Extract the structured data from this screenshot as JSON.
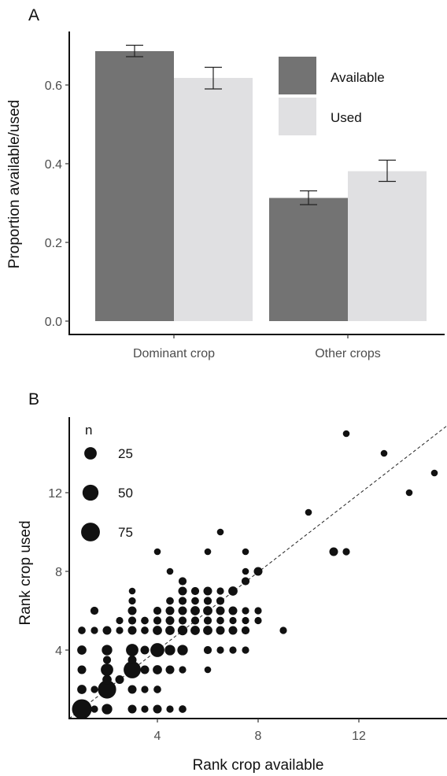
{
  "chart_data": [
    {
      "panel": "A",
      "type": "bar",
      "ylabel": "Proportion available/used",
      "xlabel": "",
      "categories": [
        "Dominant crop",
        "Other crops"
      ],
      "ylim": [
        0,
        0.72
      ],
      "yticks": [
        "0.0",
        "0.2",
        "0.4",
        "0.6"
      ],
      "yticks_values": [
        0,
        0.2,
        0.4,
        0.6
      ],
      "legend_position": "top-right",
      "series": [
        {
          "name": "Available",
          "color": "#737373",
          "values": [
            0.686,
            0.313
          ],
          "error_low": [
            0.672,
            0.296
          ],
          "error_high": [
            0.701,
            0.331
          ]
        },
        {
          "name": "Used",
          "color": "#e0e0e2",
          "values": [
            0.618,
            0.381
          ],
          "error_low": [
            0.59,
            0.355
          ],
          "error_high": [
            0.645,
            0.409
          ]
        }
      ]
    },
    {
      "panel": "B",
      "type": "scatter",
      "xlabel": "Rank crop available",
      "ylabel": "Rank crop used",
      "xlim": [
        0.2,
        15.3
      ],
      "ylim": [
        0.2,
        15.75
      ],
      "xticks": [
        "4",
        "8",
        "12"
      ],
      "xticks_values": [
        4,
        8,
        12
      ],
      "yticks": [
        "4",
        "8",
        "12"
      ],
      "yticks_values": [
        4,
        8,
        12
      ],
      "reference_line": "y = x (dashed)",
      "size_legend": {
        "title": "n",
        "levels": [
          {
            "label": "25",
            "value": 25
          },
          {
            "label": "50",
            "value": 50
          },
          {
            "label": "75",
            "value": 75
          }
        ]
      },
      "points": [
        {
          "x": 1,
          "y": 1,
          "n": 85
        },
        {
          "x": 1.5,
          "y": 1,
          "n": 4
        },
        {
          "x": 2,
          "y": 1,
          "n": 15
        },
        {
          "x": 3,
          "y": 1,
          "n": 8
        },
        {
          "x": 3.5,
          "y": 1,
          "n": 4
        },
        {
          "x": 4,
          "y": 1,
          "n": 8
        },
        {
          "x": 4.5,
          "y": 1,
          "n": 4
        },
        {
          "x": 5,
          "y": 1,
          "n": 5
        },
        {
          "x": 1,
          "y": 2,
          "n": 10
        },
        {
          "x": 1.5,
          "y": 2,
          "n": 4
        },
        {
          "x": 2,
          "y": 2,
          "n": 70
        },
        {
          "x": 3,
          "y": 2,
          "n": 8
        },
        {
          "x": 3.5,
          "y": 2,
          "n": 4
        },
        {
          "x": 4,
          "y": 2,
          "n": 5
        },
        {
          "x": 2,
          "y": 2.5,
          "n": 10
        },
        {
          "x": 2.5,
          "y": 2.5,
          "n": 8
        },
        {
          "x": 1,
          "y": 3,
          "n": 8
        },
        {
          "x": 2,
          "y": 3,
          "n": 25
        },
        {
          "x": 3,
          "y": 3,
          "n": 60
        },
        {
          "x": 3.5,
          "y": 3,
          "n": 8
        },
        {
          "x": 4,
          "y": 3,
          "n": 10
        },
        {
          "x": 4.5,
          "y": 3,
          "n": 8
        },
        {
          "x": 5,
          "y": 3,
          "n": 4
        },
        {
          "x": 6,
          "y": 3,
          "n": 3
        },
        {
          "x": 2,
          "y": 3.5,
          "n": 6
        },
        {
          "x": 3,
          "y": 3.5,
          "n": 8
        },
        {
          "x": 1,
          "y": 4,
          "n": 10
        },
        {
          "x": 2,
          "y": 4,
          "n": 15
        },
        {
          "x": 3,
          "y": 4,
          "n": 25
        },
        {
          "x": 3.5,
          "y": 4,
          "n": 8
        },
        {
          "x": 4,
          "y": 4,
          "n": 35
        },
        {
          "x": 4.5,
          "y": 4,
          "n": 15
        },
        {
          "x": 5,
          "y": 4,
          "n": 15
        },
        {
          "x": 6,
          "y": 4,
          "n": 6
        },
        {
          "x": 6.5,
          "y": 4,
          "n": 4
        },
        {
          "x": 7,
          "y": 4,
          "n": 4
        },
        {
          "x": 7.5,
          "y": 4,
          "n": 4
        },
        {
          "x": 1,
          "y": 5,
          "n": 5
        },
        {
          "x": 1.5,
          "y": 5,
          "n": 4
        },
        {
          "x": 2,
          "y": 5,
          "n": 8
        },
        {
          "x": 2.5,
          "y": 5,
          "n": 4
        },
        {
          "x": 3,
          "y": 5,
          "n": 8
        },
        {
          "x": 3.5,
          "y": 5,
          "n": 5
        },
        {
          "x": 4,
          "y": 5,
          "n": 10
        },
        {
          "x": 4.5,
          "y": 5,
          "n": 10
        },
        {
          "x": 5,
          "y": 5,
          "n": 12
        },
        {
          "x": 5.5,
          "y": 5,
          "n": 10
        },
        {
          "x": 6,
          "y": 5,
          "n": 10
        },
        {
          "x": 6.5,
          "y": 5,
          "n": 8
        },
        {
          "x": 7,
          "y": 5,
          "n": 8
        },
        {
          "x": 7.5,
          "y": 5,
          "n": 6
        },
        {
          "x": 9,
          "y": 5,
          "n": 4
        },
        {
          "x": 2.5,
          "y": 5.5,
          "n": 4
        },
        {
          "x": 3,
          "y": 5.5,
          "n": 6
        },
        {
          "x": 3.5,
          "y": 5.5,
          "n": 5
        },
        {
          "x": 4,
          "y": 5.5,
          "n": 6
        },
        {
          "x": 4.5,
          "y": 5.5,
          "n": 8
        },
        {
          "x": 5,
          "y": 5.5,
          "n": 6
        },
        {
          "x": 5.5,
          "y": 5.5,
          "n": 6
        },
        {
          "x": 6,
          "y": 5.5,
          "n": 6
        },
        {
          "x": 6.5,
          "y": 5.5,
          "n": 5
        },
        {
          "x": 7,
          "y": 5.5,
          "n": 4
        },
        {
          "x": 7.5,
          "y": 5.5,
          "n": 4
        },
        {
          "x": 8,
          "y": 5.5,
          "n": 4
        },
        {
          "x": 1.5,
          "y": 6,
          "n": 6
        },
        {
          "x": 3,
          "y": 6,
          "n": 8
        },
        {
          "x": 4,
          "y": 6,
          "n": 6
        },
        {
          "x": 4.5,
          "y": 6,
          "n": 8
        },
        {
          "x": 5,
          "y": 6,
          "n": 8
        },
        {
          "x": 5.5,
          "y": 6,
          "n": 10
        },
        {
          "x": 6,
          "y": 6,
          "n": 10
        },
        {
          "x": 6.5,
          "y": 6,
          "n": 8
        },
        {
          "x": 7,
          "y": 6,
          "n": 8
        },
        {
          "x": 7.5,
          "y": 6,
          "n": 4
        },
        {
          "x": 8,
          "y": 6,
          "n": 4
        },
        {
          "x": 3,
          "y": 6.5,
          "n": 4
        },
        {
          "x": 4.5,
          "y": 6.5,
          "n": 5
        },
        {
          "x": 5,
          "y": 6.5,
          "n": 6
        },
        {
          "x": 5.5,
          "y": 6.5,
          "n": 5
        },
        {
          "x": 6,
          "y": 6.5,
          "n": 6
        },
        {
          "x": 6.5,
          "y": 6.5,
          "n": 6
        },
        {
          "x": 3,
          "y": 7,
          "n": 3
        },
        {
          "x": 5,
          "y": 7,
          "n": 8
        },
        {
          "x": 5.5,
          "y": 7,
          "n": 6
        },
        {
          "x": 6,
          "y": 7,
          "n": 8
        },
        {
          "x": 6.5,
          "y": 7,
          "n": 4
        },
        {
          "x": 7,
          "y": 7,
          "n": 10
        },
        {
          "x": 5,
          "y": 7.5,
          "n": 6
        },
        {
          "x": 7.5,
          "y": 7.5,
          "n": 6
        },
        {
          "x": 4.5,
          "y": 8,
          "n": 3
        },
        {
          "x": 7.5,
          "y": 8,
          "n": 3
        },
        {
          "x": 8,
          "y": 8,
          "n": 8
        },
        {
          "x": 4,
          "y": 9,
          "n": 3
        },
        {
          "x": 6,
          "y": 9,
          "n": 3
        },
        {
          "x": 7.5,
          "y": 9,
          "n": 3
        },
        {
          "x": 11,
          "y": 9,
          "n": 8
        },
        {
          "x": 11.5,
          "y": 9,
          "n": 4
        },
        {
          "x": 6.5,
          "y": 10,
          "n": 3
        },
        {
          "x": 10,
          "y": 11,
          "n": 3
        },
        {
          "x": 14,
          "y": 12,
          "n": 3
        },
        {
          "x": 15,
          "y": 13,
          "n": 3
        },
        {
          "x": 13,
          "y": 14,
          "n": 3
        },
        {
          "x": 11.5,
          "y": 15,
          "n": 3
        }
      ]
    }
  ]
}
